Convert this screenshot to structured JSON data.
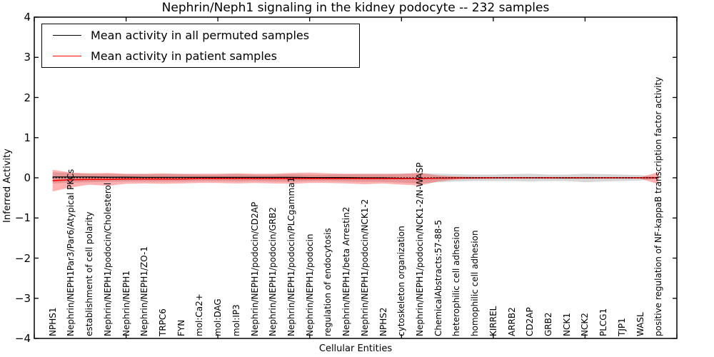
{
  "title": "Nephrin/Neph1 signaling in the kidney podocyte -- 232 samples",
  "chart_data": {
    "type": "line",
    "title": "Nephrin/Neph1 signaling in the kidney podocyte -- 232 samples",
    "xlabel": "Cellular Entities",
    "ylabel": "Inferred Activity",
    "ylim": [
      -4,
      4
    ],
    "xlim": [
      0,
      35
    ],
    "grid": false,
    "legend_position": "upper left",
    "y_tick_values": [
      4,
      3,
      2,
      1,
      0,
      -1,
      -2,
      -3,
      -4
    ],
    "y_tick_labels": [
      "4",
      "3",
      "2",
      "1",
      "0",
      "−1",
      "−2",
      "−3",
      "−4"
    ],
    "x_frame_tick_values": [
      0,
      5,
      10,
      15,
      20,
      25,
      30,
      35
    ],
    "zero_line": {
      "y": 0,
      "style": "dotted",
      "color": "#000000"
    },
    "categories": [
      "NPHS1",
      "Nephrin/NEPH1Par3/Par6/Atypical PKCs",
      "establishment of cell polarity",
      "Nephrin/NEPH1/podocin/Cholesterol",
      "Nephrin/NEPH1",
      "Nephrin/NEPH1/ZO-1",
      "TRPC6",
      "FYN",
      "mol:Ca2+",
      "mol:DAG",
      "mol:IP3",
      "Nephrin/NEPH1/podocin/CD2AP",
      "Nephrin/NEPH1/podocin/GRB2",
      "Nephrin/NEPH1/podocin/PLCgamma1",
      "Nephrin/NEPH1/podocin",
      "regulation of endocytosis",
      "Nephrin/NEPH1/beta Arrestin2",
      "Nephrin/NEPH1/podocin/NCK1-2",
      "NPHS2",
      "cytoskeleton organization",
      "Nephrin/NEPH1/podocin/NCK1-2/N-WASP",
      "ChemicalAbstracts:57-88-5",
      "heterophilic cell adhesion",
      "homophilic cell adhesion",
      "KIRREL",
      "ARRB2",
      "CD2AP",
      "GRB2",
      "NCK1",
      "NCK2",
      "PLCG1",
      "TJP1",
      "WASL",
      "positive regulation of NF-kappaB transcription factor activity"
    ],
    "series": [
      {
        "name": "Mean activity in all permuted samples",
        "color": "#000000",
        "band_color": "#999999",
        "band_opacity": 0.4,
        "values": [
          0.02,
          0.02,
          0.02,
          0.015,
          0.015,
          0.01,
          0.01,
          0.01,
          0.01,
          0.01,
          0.01,
          0.01,
          0.01,
          0.01,
          0.005,
          0.005,
          0.005,
          0.0,
          0.0,
          -0.01,
          -0.02,
          -0.005,
          0.0,
          0.0,
          0.0,
          0.0,
          0.0,
          0.0,
          -0.005,
          -0.005,
          0.0,
          0.0,
          0.0,
          0.0
        ],
        "band_upper": [
          0.14,
          0.12,
          0.1,
          0.1,
          0.09,
          0.09,
          0.09,
          0.09,
          0.08,
          0.08,
          0.09,
          0.08,
          0.08,
          0.09,
          0.08,
          0.08,
          0.09,
          0.09,
          0.09,
          0.1,
          0.12,
          0.1,
          0.09,
          0.08,
          0.08,
          0.09,
          0.1,
          0.08,
          0.08,
          0.1,
          0.09,
          0.08,
          0.07,
          0.02
        ],
        "band_lower": [
          -0.14,
          -0.12,
          -0.11,
          -0.1,
          -0.09,
          -0.09,
          -0.09,
          -0.09,
          -0.08,
          -0.08,
          -0.09,
          -0.08,
          -0.09,
          -0.1,
          -0.08,
          -0.08,
          -0.09,
          -0.1,
          -0.1,
          -0.12,
          -0.14,
          -0.11,
          -0.09,
          -0.08,
          -0.08,
          -0.08,
          -0.09,
          -0.08,
          -0.08,
          -0.11,
          -0.09,
          -0.08,
          -0.07,
          -0.02
        ]
      },
      {
        "name": "Mean activity in patient samples",
        "color": "#ff0000",
        "band_color": "#ff3333",
        "band_opacity": 0.38,
        "values": [
          -0.07,
          -0.05,
          -0.04,
          -0.04,
          -0.03,
          -0.03,
          -0.03,
          -0.03,
          -0.02,
          -0.02,
          -0.02,
          -0.02,
          -0.02,
          -0.02,
          -0.02,
          -0.02,
          -0.02,
          -0.02,
          -0.02,
          -0.02,
          -0.02,
          -0.01,
          -0.005,
          0.0,
          0.0,
          0.0,
          0.0,
          0.0,
          0.0,
          0.0,
          0.0,
          0.0,
          0.0,
          0.0
        ],
        "band_upper": [
          0.2,
          0.13,
          0.11,
          0.12,
          0.1,
          0.1,
          0.11,
          0.1,
          0.1,
          0.1,
          0.11,
          0.1,
          0.1,
          0.12,
          0.13,
          0.11,
          0.1,
          0.1,
          0.1,
          0.1,
          0.12,
          0.06,
          0.03,
          0.02,
          0.015,
          0.015,
          0.015,
          0.015,
          0.015,
          0.015,
          0.015,
          0.015,
          0.015,
          0.14
        ],
        "band_lower": [
          -0.34,
          -0.24,
          -0.17,
          -0.2,
          -0.15,
          -0.14,
          -0.15,
          -0.14,
          -0.13,
          -0.13,
          -0.14,
          -0.13,
          -0.14,
          -0.15,
          -0.13,
          -0.13,
          -0.14,
          -0.16,
          -0.14,
          -0.17,
          -0.19,
          -0.09,
          -0.04,
          -0.03,
          -0.02,
          -0.02,
          -0.02,
          -0.02,
          -0.02,
          -0.02,
          -0.02,
          -0.02,
          -0.02,
          -0.16
        ]
      }
    ]
  }
}
